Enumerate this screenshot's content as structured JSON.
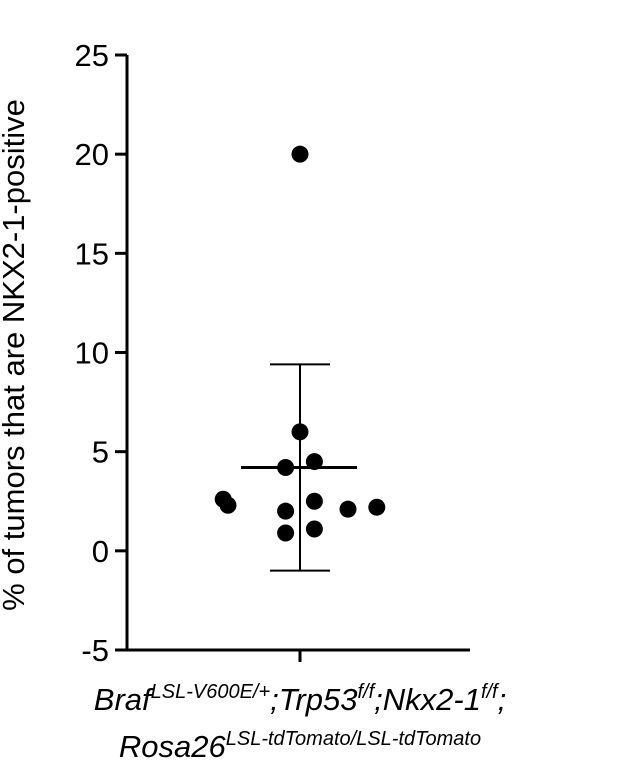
{
  "chart_data": {
    "type": "scatter",
    "title": "",
    "ylabel": "% of tumors that are NKX2-1-positive",
    "xlabel": {
      "line1": [
        {
          "text": "Braf",
          "sup": false
        },
        {
          "text": "LSL-V600E/+",
          "sup": true
        },
        {
          "text": ";Trp53",
          "sup": false
        },
        {
          "text": "f/f",
          "sup": true
        },
        {
          "text": ";Nkx2-1",
          "sup": false
        },
        {
          "text": "f/f",
          "sup": true
        },
        {
          "text": ";",
          "sup": false
        }
      ],
      "line2": [
        {
          "text": "Rosa26",
          "sup": false
        },
        {
          "text": "LSL-tdTomato/LSL-tdTomato",
          "sup": true
        }
      ]
    },
    "ylim": [
      -5,
      25
    ],
    "yticks": [
      -5,
      0,
      5,
      10,
      15,
      20,
      25
    ],
    "grid": false,
    "legend": "none",
    "points": [
      {
        "jitter": 0.0,
        "y": 20.0
      },
      {
        "jitter": 0.0,
        "y": 6.0
      },
      {
        "jitter": 0.3,
        "y": 4.5
      },
      {
        "jitter": -0.3,
        "y": 4.2
      },
      {
        "jitter": -1.6,
        "y": 2.6
      },
      {
        "jitter": -1.5,
        "y": 2.3
      },
      {
        "jitter": 0.3,
        "y": 2.5
      },
      {
        "jitter": -0.3,
        "y": 2.0
      },
      {
        "jitter": 1.0,
        "y": 2.1
      },
      {
        "jitter": 1.6,
        "y": 2.2
      },
      {
        "jitter": -0.3,
        "y": 0.9
      },
      {
        "jitter": 0.3,
        "y": 1.1
      }
    ],
    "summary": {
      "mean": 4.2,
      "sd_upper": 9.4,
      "sd_lower": -1.0
    },
    "colors": {
      "points": "#000000",
      "axis": "#000000"
    }
  }
}
